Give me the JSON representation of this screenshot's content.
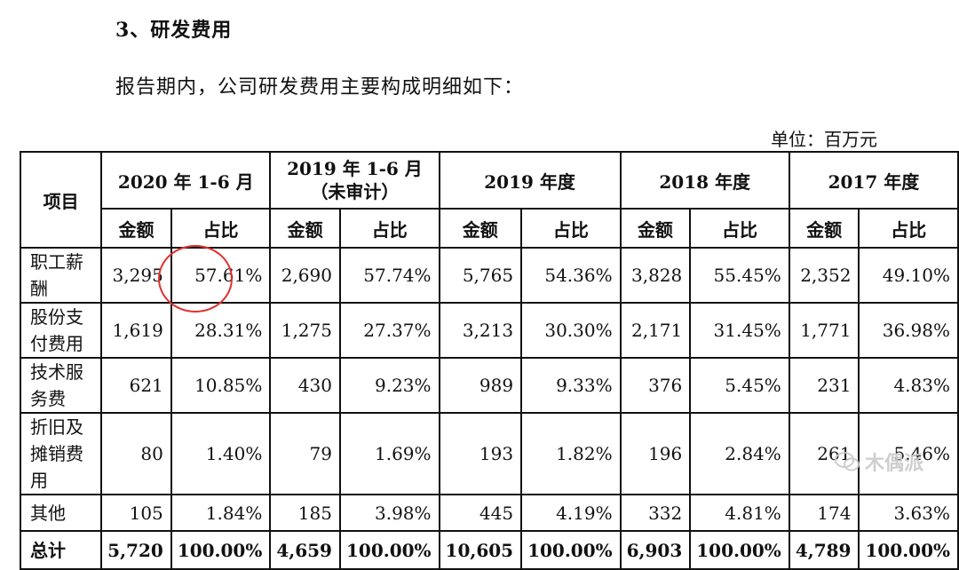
{
  "heading": "3、研发费用",
  "intro": "报告期内，公司研发费用主要构成明细如下：",
  "unit": "单位：百万元",
  "table": {
    "item_header": "项目",
    "periods": [
      {
        "line1": "2020 年 1-6 月",
        "line2": ""
      },
      {
        "line1": "2019 年 1-6 月",
        "line2": "（未审计）"
      },
      {
        "line1": "2019 年度",
        "line2": ""
      },
      {
        "line1": "2018 年度",
        "line2": ""
      },
      {
        "line1": "2017 年度",
        "line2": ""
      }
    ],
    "sub_amount": "金额",
    "sub_ratio": "占比",
    "rows": [
      {
        "label": "职工薪酬",
        "cells": [
          "3,295",
          "57.61%",
          "2,690",
          "57.74%",
          "5,765",
          "54.36%",
          "3,828",
          "55.45%",
          "2,352",
          "49.10%"
        ]
      },
      {
        "label": "股份支付费用",
        "cells": [
          "1,619",
          "28.31%",
          "1,275",
          "27.37%",
          "3,213",
          "30.30%",
          "2,171",
          "31.45%",
          "1,771",
          "36.98%"
        ]
      },
      {
        "label": "技术服务费",
        "cells": [
          "621",
          "10.85%",
          "430",
          "9.23%",
          "989",
          "9.33%",
          "376",
          "5.45%",
          "231",
          "4.83%"
        ]
      },
      {
        "label": "折旧及摊销费用",
        "cells": [
          "80",
          "1.40%",
          "79",
          "1.69%",
          "193",
          "1.82%",
          "196",
          "2.84%",
          "261",
          "5.46%"
        ]
      },
      {
        "label": "其他",
        "cells": [
          "105",
          "1.84%",
          "185",
          "3.98%",
          "445",
          "4.19%",
          "332",
          "4.81%",
          "174",
          "3.63%"
        ]
      },
      {
        "label": "总计",
        "cells": [
          "5,720",
          "100.00%",
          "4,659",
          "100.00%",
          "10,605",
          "100.00%",
          "6,903",
          "100.00%",
          "4,789",
          "100.00%"
        ]
      }
    ]
  },
  "watermark": "木偶派",
  "colors": {
    "annotation_circle": "#e03030",
    "watermark": "#c9c9c9"
  }
}
